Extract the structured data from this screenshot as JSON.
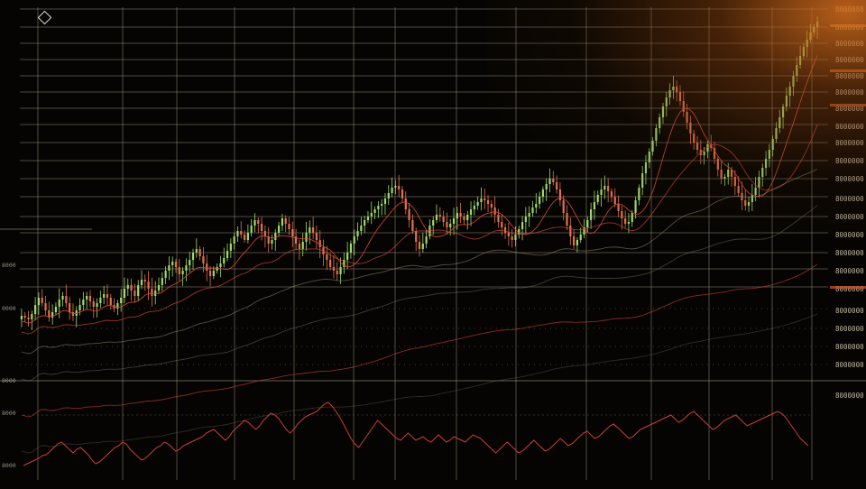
{
  "chart_data": {
    "type": "candlestick",
    "title": "",
    "xlabel": "",
    "ylabel": "",
    "grid": true,
    "legend": "none",
    "colors": {
      "up": "#9fd86a",
      "down": "#e2704e",
      "grid": "#b8b098",
      "oscillator": "#c8402e",
      "ma": "#d84a34",
      "axis_text": "#cfc7b0",
      "glow": "#d66e1e"
    },
    "price_axis_labels": [
      "8000888",
      "8000000",
      "8000000",
      "8000000",
      "8000000",
      "8000000",
      "8000000",
      "8000000",
      "8000000",
      "8000000",
      "8000000",
      "8000000",
      "8000000",
      "8000000",
      "8000000",
      "8000000",
      "8000000",
      "8000000",
      "8000000",
      "8000000",
      "8000000",
      "8000000"
    ],
    "left_markers": [
      "8000",
      "0000",
      "8000",
      "8000",
      "8000"
    ],
    "candle_closes": [
      350,
      352,
      354,
      348,
      338,
      330,
      336,
      344,
      352,
      346,
      340,
      332,
      328,
      336,
      346,
      350,
      344,
      338,
      332,
      328,
      334,
      340,
      336,
      330,
      326,
      330,
      338,
      342,
      336,
      330,
      320,
      316,
      322,
      328,
      316,
      310,
      312,
      320,
      328,
      322,
      316,
      308,
      300,
      294,
      290,
      296,
      304,
      300,
      294,
      288,
      280,
      276,
      284,
      292,
      300,
      306,
      300,
      296,
      292,
      286,
      278,
      270,
      262,
      256,
      260,
      266,
      258,
      250,
      244,
      248,
      256,
      262,
      270,
      266,
      258,
      250,
      242,
      248,
      254,
      262,
      270,
      276,
      268,
      258,
      252,
      258,
      266,
      274,
      282,
      288,
      296,
      300,
      304,
      296,
      288,
      280,
      270,
      262,
      256,
      250,
      244,
      240,
      236,
      232,
      228,
      226,
      220,
      214,
      208,
      206,
      210,
      220,
      232,
      244,
      256,
      268,
      276,
      270,
      262,
      250,
      244,
      238,
      240,
      246,
      252,
      248,
      242,
      236,
      240,
      244,
      238,
      232,
      228,
      224,
      220,
      222,
      226,
      230,
      238,
      246,
      252,
      258,
      262,
      266,
      260,
      254,
      246,
      240,
      236,
      230,
      226,
      218,
      210,
      204,
      198,
      202,
      210,
      222,
      236,
      250,
      262,
      272,
      266,
      260,
      252,
      244,
      232,
      224,
      216,
      210,
      206,
      212,
      218,
      226,
      234,
      242,
      248,
      246,
      236,
      222,
      208,
      192,
      180,
      168,
      156,
      142,
      130,
      118,
      108,
      100,
      96,
      102,
      112,
      124,
      136,
      148,
      158,
      166,
      172,
      168,
      160,
      164,
      176,
      188,
      198,
      196,
      188,
      196,
      206,
      214,
      222,
      228,
      224,
      216,
      208,
      196,
      186,
      176,
      166,
      154,
      142,
      130,
      118,
      106,
      96,
      84,
      72,
      62,
      52,
      44,
      36,
      30,
      24
    ],
    "oscillator_values": [
      516,
      514,
      512,
      510,
      508,
      505,
      504,
      500,
      496,
      492,
      490,
      494,
      498,
      502,
      498,
      496,
      500,
      504,
      510,
      514,
      512,
      508,
      504,
      500,
      496,
      494,
      490,
      492,
      498,
      502,
      506,
      510,
      508,
      504,
      500,
      496,
      494,
      490,
      492,
      496,
      500,
      498,
      494,
      492,
      490,
      488,
      486,
      484,
      480,
      478,
      476,
      480,
      484,
      488,
      484,
      478,
      474,
      470,
      466,
      468,
      472,
      476,
      472,
      466,
      462,
      458,
      460,
      464,
      470,
      476,
      480,
      476,
      470,
      466,
      462,
      460,
      458,
      456,
      452,
      448,
      446,
      450,
      456,
      462,
      470,
      478,
      486,
      492,
      496,
      490,
      484,
      478,
      472,
      466,
      470,
      474,
      478,
      482,
      486,
      488,
      484,
      480,
      484,
      488,
      486,
      484,
      488,
      490,
      486,
      482,
      486,
      490,
      488,
      484,
      486,
      488,
      490,
      486,
      482,
      484,
      486,
      490,
      494,
      498,
      502,
      498,
      494,
      490,
      494,
      498,
      502,
      500,
      496,
      492,
      488,
      492,
      496,
      500,
      498,
      494,
      490,
      486,
      490,
      494,
      492,
      488,
      484,
      480,
      478,
      482,
      486,
      484,
      480,
      476,
      472,
      470,
      474,
      478,
      482,
      486,
      484,
      480,
      476,
      474,
      472,
      470,
      468,
      466,
      464,
      462,
      460,
      464,
      468,
      466,
      462,
      458,
      456,
      460,
      464,
      468,
      472,
      476,
      474,
      470,
      466,
      464,
      462,
      460,
      464,
      468,
      472,
      470,
      468,
      466,
      464,
      462,
      460,
      458,
      456,
      458,
      462,
      468,
      474,
      480,
      486,
      490,
      494
    ]
  }
}
